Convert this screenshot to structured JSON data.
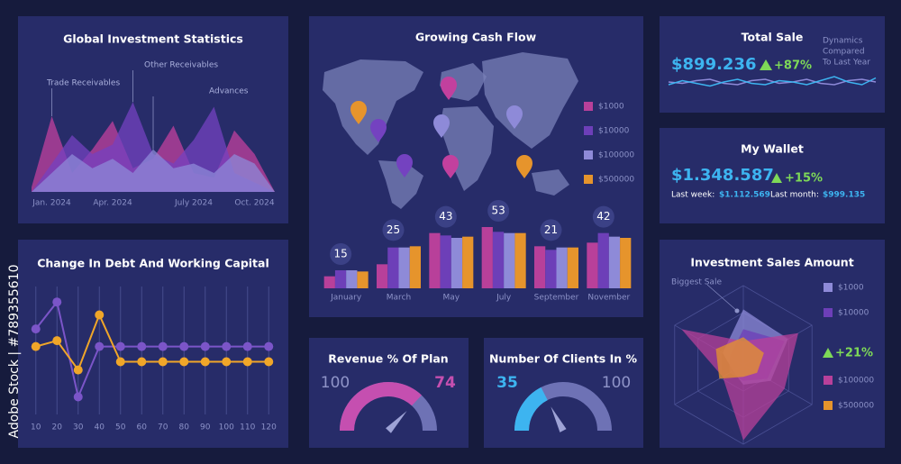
{
  "watermark": "Adobe Stock | #789355610",
  "total_sale": {
    "title": "Total Sale",
    "amount": "$899.236",
    "change": "+87%",
    "note": [
      "Dynamics",
      "Compared",
      "To Last Year"
    ]
  },
  "my_wallet": {
    "title": "My Wallet",
    "amount": "$1.348.587",
    "change": "+15%",
    "last_week_label": "Last week:",
    "last_week": "$1.112.569",
    "last_month_label": "Last month:",
    "last_month": "$999.135"
  },
  "chart_data": [
    {
      "type": "area",
      "title": "Global Investment Statistics",
      "categories": [
        null,
        "Jan. 2024",
        null,
        null,
        "Apr. 2024",
        null,
        null,
        null,
        "July 2024",
        null,
        null,
        "Oct. 2024",
        null
      ],
      "ylim": [
        0,
        100
      ],
      "series": [
        {
          "name": "Trade Receivables",
          "color": "#c2409e",
          "values": [
            5,
            80,
            20,
            45,
            75,
            25,
            35,
            70,
            20,
            15,
            65,
            40,
            0
          ]
        },
        {
          "name": "Other Receivables",
          "color": "#7442c0",
          "values": [
            0,
            30,
            60,
            40,
            50,
            95,
            40,
            30,
            55,
            90,
            20,
            10,
            0
          ]
        },
        {
          "name": "Advances",
          "color": "#8e8ad8",
          "values": [
            0,
            20,
            40,
            25,
            35,
            20,
            45,
            25,
            30,
            20,
            40,
            30,
            0
          ]
        }
      ]
    },
    {
      "type": "bar",
      "title": "Growing Cash Flow",
      "categories": [
        "January",
        "March",
        "May",
        "July",
        "September",
        "November"
      ],
      "ylim": [
        0,
        60
      ],
      "highlights": [
        15,
        25,
        43,
        53,
        21,
        42
      ],
      "series": [
        {
          "name": "$1000",
          "color": "#b8409a",
          "values": [
            10,
            20,
            46,
            51,
            35,
            38
          ]
        },
        {
          "name": "$10000",
          "color": "#6d3fb8",
          "values": [
            15,
            34,
            44,
            47,
            32,
            46
          ]
        },
        {
          "name": "$100000",
          "color": "#8e8ad8",
          "values": [
            15,
            34,
            42,
            46,
            34,
            43
          ]
        },
        {
          "name": "$500000",
          "color": "#e6942c",
          "values": [
            14,
            35,
            43,
            46,
            34,
            42
          ]
        }
      ]
    },
    {
      "type": "line",
      "title": "Change In Debt And Working Capital",
      "x": [
        10,
        20,
        30,
        40,
        50,
        60,
        70,
        80,
        90,
        100,
        110,
        120
      ],
      "xlim": [
        5,
        125
      ],
      "xticks": [
        10,
        20,
        30,
        40,
        50,
        60,
        70,
        80,
        90,
        100,
        110,
        120
      ],
      "ylim": [
        0,
        100
      ],
      "grid": true,
      "series": [
        {
          "color": "#7b55c8",
          "values": [
            73,
            96,
            15,
            58,
            58,
            58,
            58,
            58,
            58,
            58,
            58,
            58
          ]
        },
        {
          "color": "#f0a629",
          "values": [
            58,
            63,
            38,
            85,
            45,
            45,
            45,
            45,
            45,
            45,
            45,
            45
          ]
        }
      ]
    },
    {
      "type": "gauge",
      "title": "Revenue % Of Plan",
      "value": 74,
      "max": 100,
      "color": "#c54fb0"
    },
    {
      "type": "gauge",
      "title": "Number Of Clients In %",
      "value": 35,
      "max": 100,
      "color": "#3db4f0"
    },
    {
      "type": "radar",
      "title": "Investment Sales Amount",
      "annotation": "Biggest Sale",
      "change": "+21%",
      "ylim": [
        0,
        100
      ],
      "series": [
        {
          "name": "$1000",
          "color": "#8e8ad8",
          "values": [
            70,
            65,
            40,
            25,
            15,
            30
          ]
        },
        {
          "name": "$10000",
          "color": "#6d3fb8",
          "values": [
            45,
            60,
            35,
            20,
            20,
            20
          ]
        },
        {
          "name": "$100000",
          "color": "#b8409a",
          "values": [
            30,
            80,
            60,
            95,
            30,
            90
          ]
        },
        {
          "name": "$500000",
          "color": "#e6942c",
          "values": [
            35,
            30,
            20,
            15,
            35,
            40
          ]
        }
      ]
    },
    {
      "type": "sparkline",
      "ylim": [
        0,
        100
      ],
      "series": [
        {
          "color": "#8e8ad8",
          "values": [
            50,
            45,
            55,
            60,
            45,
            40,
            55,
            60,
            45,
            50,
            60,
            45,
            40,
            55,
            60,
            50
          ]
        },
        {
          "color": "#3db4f0",
          "values": [
            40,
            55,
            45,
            35,
            50,
            60,
            45,
            40,
            55,
            50,
            40,
            55,
            70,
            50,
            40,
            65
          ]
        }
      ]
    }
  ]
}
